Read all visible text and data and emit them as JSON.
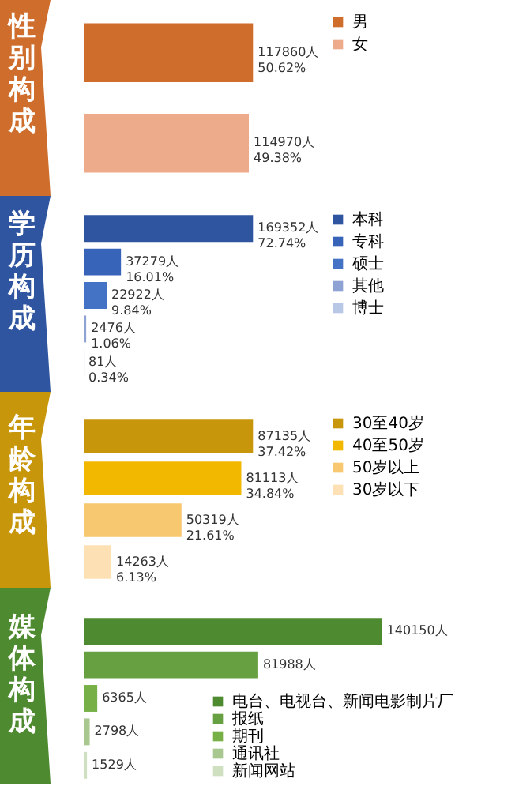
{
  "chart_data": [
    {
      "type": "bar",
      "orientation": "horizontal",
      "title": "性别构成",
      "categories": [
        null
      ],
      "legend": "right",
      "tick_labels": false,
      "series": [
        {
          "name": "男",
          "color": "#cf6d2c",
          "values": [
            117860
          ],
          "value_labels": [
            "117860人\n50.62%"
          ]
        },
        {
          "name": "女",
          "color": "#eeab8c",
          "values": [
            114970
          ],
          "value_labels": [
            "114970人\n49.38%"
          ]
        }
      ]
    },
    {
      "type": "bar",
      "orientation": "horizontal",
      "title": "学历构成",
      "categories": [
        null
      ],
      "legend": "right",
      "tick_labels": false,
      "series": [
        {
          "name": "本科",
          "color": "#2f55a0",
          "values": [
            169352
          ],
          "value_labels": [
            "169352人\n72.74%"
          ]
        },
        {
          "name": "专科",
          "color": "#3763b8",
          "values": [
            37279
          ],
          "value_labels": [
            "37279人\n16.01%"
          ]
        },
        {
          "name": "硕士",
          "color": "#4472c4",
          "values": [
            22922
          ],
          "value_labels": [
            "22922人\n9.84%"
          ]
        },
        {
          "name": "其他",
          "color": "#8fa2d4",
          "values": [
            2476
          ],
          "value_labels": [
            "2476人\n1.06%"
          ]
        },
        {
          "name": "博士",
          "color": "#b9c7e6",
          "values": [
            81
          ],
          "value_labels": [
            "81人\n0.34%"
          ]
        }
      ]
    },
    {
      "type": "bar",
      "orientation": "horizontal",
      "title": "年龄构成",
      "categories": [
        null
      ],
      "legend": "right",
      "tick_labels": false,
      "series": [
        {
          "name": "30至40岁",
          "color": "#c8960a",
          "values": [
            87135
          ],
          "value_labels": [
            "87135人\n37.42%"
          ]
        },
        {
          "name": "40至50岁",
          "color": "#f2b800",
          "values": [
            81113
          ],
          "value_labels": [
            "81113人\n34.84%"
          ]
        },
        {
          "name": "50岁以上",
          "color": "#f8c870",
          "values": [
            50319
          ],
          "value_labels": [
            "50319人\n21.61%"
          ]
        },
        {
          "name": "30岁以下",
          "color": "#fde0b4",
          "values": [
            14263
          ],
          "value_labels": [
            "14263人\n6.13%"
          ]
        }
      ]
    },
    {
      "type": "bar",
      "orientation": "horizontal",
      "title": "媒体构成",
      "categories": [
        null
      ],
      "legend": "bottom right",
      "tick_labels": false,
      "series": [
        {
          "name": "电台、电视台、新闻电影制片厂",
          "color": "#4e8a30",
          "values": [
            140150
          ],
          "value_labels": [
            "140150人"
          ]
        },
        {
          "name": "报纸",
          "color": "#66a040",
          "values": [
            81988
          ],
          "value_labels": [
            "81988人"
          ]
        },
        {
          "name": "期刊",
          "color": "#78b048",
          "values": [
            6365
          ],
          "value_labels": [
            "6365人"
          ]
        },
        {
          "name": "通讯社",
          "color": "#a8c890",
          "values": [
            2798
          ],
          "value_labels": [
            "2798人"
          ]
        },
        {
          "name": "新闻网站",
          "color": "#cfe0c0",
          "values": [
            1529
          ],
          "value_labels": [
            "1529人"
          ]
        }
      ]
    }
  ]
}
